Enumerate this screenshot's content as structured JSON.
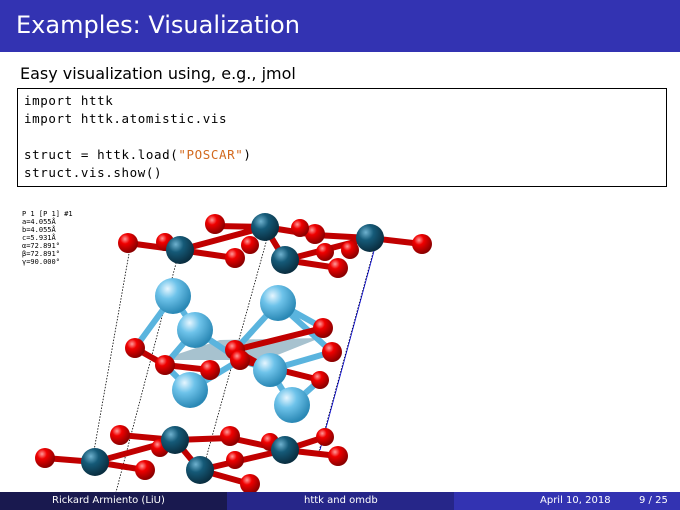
{
  "slide": {
    "title": "Examples: Visualization",
    "subtitle": "Easy visualization using, e.g., jmol"
  },
  "code": {
    "line1": {
      "kw": "import",
      "rest": " httk"
    },
    "line2": {
      "kw": "import",
      "rest": " httk.atomistic.vis"
    },
    "line3": {
      "pre": "struct = httk.load(",
      "str": "\"POSCAR\"",
      "post": ")"
    },
    "line4": "struct.vis.show()"
  },
  "viz": {
    "info": [
      "P 1 [P 1] #1",
      "a=4.055Å",
      "b=4.055Å",
      "c=5.931Å",
      "α=72.891°",
      "β=72.891°",
      "γ=90.000°"
    ]
  },
  "footer": {
    "author": "Rickard Armiento (LiU)",
    "talk": "httk and omdb",
    "date": "April 10, 2018",
    "page": "9 / 25"
  },
  "colors": {
    "header": "#3333b2",
    "oxygen": "#e00000",
    "metal": "#155a78",
    "light": "#6ec3ea"
  }
}
